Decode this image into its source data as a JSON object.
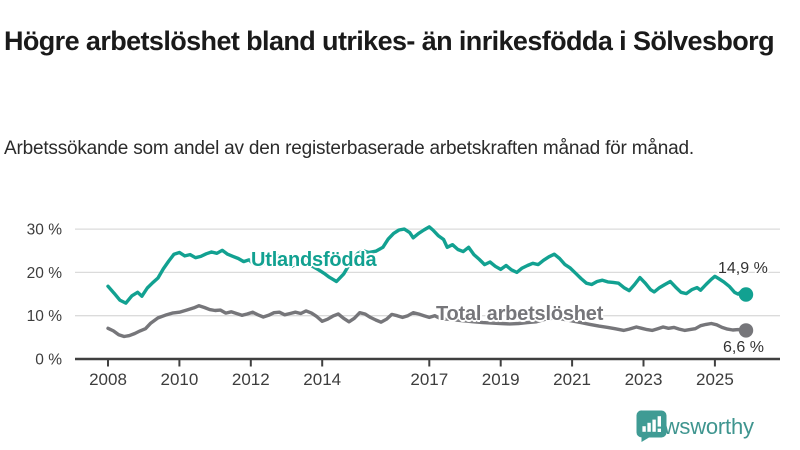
{
  "header": {
    "title": "Högre arbetslöshet bland utrikes- än inrikesfödda i Sölvesborg",
    "subtitle": "Arbetssökande som andel av den registerbaserade arbetskraften månad för månad."
  },
  "chart_data": {
    "type": "line",
    "title": "Högre arbetslöshet bland utrikes- än inrikesfödda i Sölvesborg",
    "subtitle": "Arbetssökande som andel av den registerbaserade arbetskraften månad för månad.",
    "unit": "%",
    "grid": true,
    "legend_position": "inline-labels",
    "x_axis": {
      "ticks": [
        2008,
        2010,
        2012,
        2014,
        2017,
        2019,
        2021,
        2023,
        2025
      ],
      "range": [
        2007.6,
        2026.4
      ]
    },
    "y_axis": {
      "range": [
        0,
        33
      ],
      "ticks": [
        {
          "value": 0,
          "label": "0 %"
        },
        {
          "value": 10,
          "label": "10 %"
        },
        {
          "value": 20,
          "label": "20 %"
        },
        {
          "value": 30,
          "label": "30 %"
        }
      ]
    },
    "series": [
      {
        "id": "utlandsfodda",
        "name": "Utlandsfödda",
        "color": "#12a191",
        "last_value": 14.9,
        "end_label": "14,9 %",
        "points": [
          [
            2008.0,
            16.8
          ],
          [
            2008.17,
            15.2
          ],
          [
            2008.33,
            13.6
          ],
          [
            2008.5,
            12.9
          ],
          [
            2008.67,
            14.6
          ],
          [
            2008.83,
            15.4
          ],
          [
            2008.95,
            14.5
          ],
          [
            2009.1,
            16.4
          ],
          [
            2009.25,
            17.6
          ],
          [
            2009.4,
            18.7
          ],
          [
            2009.55,
            20.8
          ],
          [
            2009.7,
            22.6
          ],
          [
            2009.85,
            24.2
          ],
          [
            2010.0,
            24.6
          ],
          [
            2010.15,
            23.8
          ],
          [
            2010.3,
            24.1
          ],
          [
            2010.45,
            23.4
          ],
          [
            2010.6,
            23.7
          ],
          [
            2010.75,
            24.3
          ],
          [
            2010.9,
            24.7
          ],
          [
            2011.05,
            24.4
          ],
          [
            2011.2,
            25.1
          ],
          [
            2011.35,
            24.2
          ],
          [
            2011.5,
            23.7
          ],
          [
            2011.65,
            23.2
          ],
          [
            2011.8,
            22.5
          ],
          [
            2011.95,
            22.9
          ],
          [
            2012.1,
            21.8
          ],
          [
            2012.25,
            21.4
          ],
          [
            2012.4,
            22.3
          ],
          [
            2012.55,
            23.5
          ],
          [
            2012.7,
            24.1
          ],
          [
            2012.85,
            23.2
          ],
          [
            2013.0,
            21.8
          ],
          [
            2013.15,
            21.4
          ],
          [
            2013.3,
            22.3
          ],
          [
            2013.45,
            22.8
          ],
          [
            2013.6,
            22.0
          ],
          [
            2013.75,
            21.3
          ],
          [
            2013.9,
            20.6
          ],
          [
            2014.05,
            19.8
          ],
          [
            2014.2,
            18.9
          ],
          [
            2014.4,
            17.9
          ],
          [
            2014.6,
            19.6
          ],
          [
            2014.8,
            22.4
          ],
          [
            2015.0,
            24.4
          ],
          [
            2015.15,
            25.0
          ],
          [
            2015.3,
            24.6
          ],
          [
            2015.5,
            24.9
          ],
          [
            2015.7,
            25.8
          ],
          [
            2015.85,
            27.7
          ],
          [
            2016.0,
            29.0
          ],
          [
            2016.15,
            29.8
          ],
          [
            2016.3,
            30.0
          ],
          [
            2016.45,
            29.2
          ],
          [
            2016.55,
            28.0
          ],
          [
            2016.7,
            29.0
          ],
          [
            2016.85,
            29.8
          ],
          [
            2017.0,
            30.5
          ],
          [
            2017.1,
            29.8
          ],
          [
            2017.25,
            28.5
          ],
          [
            2017.4,
            27.6
          ],
          [
            2017.5,
            25.8
          ],
          [
            2017.65,
            26.4
          ],
          [
            2017.8,
            25.3
          ],
          [
            2017.95,
            24.8
          ],
          [
            2018.1,
            25.8
          ],
          [
            2018.25,
            24.1
          ],
          [
            2018.4,
            23.0
          ],
          [
            2018.55,
            21.8
          ],
          [
            2018.7,
            22.4
          ],
          [
            2018.85,
            21.4
          ],
          [
            2019.0,
            20.7
          ],
          [
            2019.15,
            21.6
          ],
          [
            2019.3,
            20.6
          ],
          [
            2019.45,
            20.0
          ],
          [
            2019.6,
            21.0
          ],
          [
            2019.75,
            21.6
          ],
          [
            2019.9,
            22.1
          ],
          [
            2020.05,
            21.8
          ],
          [
            2020.2,
            22.8
          ],
          [
            2020.35,
            23.6
          ],
          [
            2020.5,
            24.2
          ],
          [
            2020.65,
            23.2
          ],
          [
            2020.8,
            21.8
          ],
          [
            2020.95,
            21.0
          ],
          [
            2021.1,
            19.8
          ],
          [
            2021.25,
            18.6
          ],
          [
            2021.4,
            17.5
          ],
          [
            2021.55,
            17.2
          ],
          [
            2021.7,
            17.9
          ],
          [
            2021.85,
            18.2
          ],
          [
            2022.0,
            17.8
          ],
          [
            2022.15,
            17.7
          ],
          [
            2022.3,
            17.5
          ],
          [
            2022.45,
            16.5
          ],
          [
            2022.6,
            15.8
          ],
          [
            2022.75,
            17.2
          ],
          [
            2022.9,
            18.8
          ],
          [
            2023.05,
            17.5
          ],
          [
            2023.2,
            16.0
          ],
          [
            2023.3,
            15.5
          ],
          [
            2023.45,
            16.5
          ],
          [
            2023.6,
            17.2
          ],
          [
            2023.75,
            17.9
          ],
          [
            2023.9,
            16.6
          ],
          [
            2024.05,
            15.4
          ],
          [
            2024.2,
            15.1
          ],
          [
            2024.35,
            16.0
          ],
          [
            2024.5,
            16.5
          ],
          [
            2024.6,
            15.9
          ],
          [
            2024.75,
            17.2
          ],
          [
            2024.9,
            18.4
          ],
          [
            2025.0,
            19.1
          ],
          [
            2025.1,
            18.6
          ],
          [
            2025.25,
            17.8
          ],
          [
            2025.4,
            16.8
          ],
          [
            2025.55,
            15.4
          ],
          [
            2025.65,
            15.0
          ],
          [
            2025.75,
            15.6
          ],
          [
            2025.87,
            14.9
          ]
        ]
      },
      {
        "id": "total",
        "name": "Total arbetslöshet",
        "color": "#76767a",
        "last_value": 6.6,
        "end_label": "6,6 %",
        "points": [
          [
            2008.0,
            7.1
          ],
          [
            2008.15,
            6.5
          ],
          [
            2008.3,
            5.6
          ],
          [
            2008.45,
            5.2
          ],
          [
            2008.6,
            5.4
          ],
          [
            2008.75,
            5.9
          ],
          [
            2008.9,
            6.5
          ],
          [
            2009.05,
            7.0
          ],
          [
            2009.2,
            8.3
          ],
          [
            2009.4,
            9.5
          ],
          [
            2009.6,
            10.1
          ],
          [
            2009.8,
            10.6
          ],
          [
            2010.0,
            10.8
          ],
          [
            2010.2,
            11.3
          ],
          [
            2010.4,
            11.8
          ],
          [
            2010.55,
            12.3
          ],
          [
            2010.7,
            11.9
          ],
          [
            2010.85,
            11.4
          ],
          [
            2011.0,
            11.2
          ],
          [
            2011.15,
            11.3
          ],
          [
            2011.3,
            10.6
          ],
          [
            2011.45,
            10.9
          ],
          [
            2011.6,
            10.5
          ],
          [
            2011.75,
            10.1
          ],
          [
            2011.9,
            10.4
          ],
          [
            2012.05,
            10.8
          ],
          [
            2012.2,
            10.2
          ],
          [
            2012.35,
            9.7
          ],
          [
            2012.5,
            10.1
          ],
          [
            2012.65,
            10.7
          ],
          [
            2012.8,
            10.8
          ],
          [
            2012.95,
            10.2
          ],
          [
            2013.1,
            10.5
          ],
          [
            2013.25,
            10.8
          ],
          [
            2013.4,
            10.5
          ],
          [
            2013.55,
            11.1
          ],
          [
            2013.7,
            10.6
          ],
          [
            2013.85,
            9.8
          ],
          [
            2014.0,
            8.7
          ],
          [
            2014.15,
            9.2
          ],
          [
            2014.3,
            9.9
          ],
          [
            2014.45,
            10.4
          ],
          [
            2014.6,
            9.4
          ],
          [
            2014.75,
            8.6
          ],
          [
            2014.9,
            9.4
          ],
          [
            2015.05,
            10.7
          ],
          [
            2015.2,
            10.4
          ],
          [
            2015.35,
            9.6
          ],
          [
            2015.5,
            9.0
          ],
          [
            2015.65,
            8.5
          ],
          [
            2015.8,
            9.2
          ],
          [
            2015.95,
            10.3
          ],
          [
            2016.1,
            10.0
          ],
          [
            2016.25,
            9.6
          ],
          [
            2016.4,
            10.0
          ],
          [
            2016.55,
            10.7
          ],
          [
            2016.7,
            10.4
          ],
          [
            2016.85,
            10.0
          ],
          [
            2017.0,
            9.6
          ],
          [
            2017.15,
            10.0
          ],
          [
            2017.3,
            9.4
          ],
          [
            2017.5,
            9.2
          ],
          [
            2017.75,
            9.0
          ],
          [
            2018.0,
            8.8
          ],
          [
            2018.25,
            8.6
          ],
          [
            2018.5,
            8.4
          ],
          [
            2018.75,
            8.3
          ],
          [
            2019.0,
            8.2
          ],
          [
            2019.25,
            8.1
          ],
          [
            2019.5,
            8.2
          ],
          [
            2019.75,
            8.4
          ],
          [
            2020.0,
            8.6
          ],
          [
            2020.25,
            9.2
          ],
          [
            2020.5,
            9.5
          ],
          [
            2020.75,
            9.2
          ],
          [
            2021.0,
            8.8
          ],
          [
            2021.25,
            8.4
          ],
          [
            2021.5,
            8.0
          ],
          [
            2021.75,
            7.6
          ],
          [
            2022.0,
            7.3
          ],
          [
            2022.2,
            7.0
          ],
          [
            2022.45,
            6.6
          ],
          [
            2022.6,
            6.9
          ],
          [
            2022.8,
            7.4
          ],
          [
            2022.95,
            7.1
          ],
          [
            2023.1,
            6.8
          ],
          [
            2023.25,
            6.6
          ],
          [
            2023.4,
            7.0
          ],
          [
            2023.55,
            7.4
          ],
          [
            2023.7,
            7.1
          ],
          [
            2023.85,
            7.3
          ],
          [
            2024.0,
            6.9
          ],
          [
            2024.15,
            6.6
          ],
          [
            2024.3,
            6.8
          ],
          [
            2024.45,
            7.0
          ],
          [
            2024.6,
            7.7
          ],
          [
            2024.75,
            8.0
          ],
          [
            2024.9,
            8.2
          ],
          [
            2025.05,
            7.9
          ],
          [
            2025.2,
            7.3
          ],
          [
            2025.35,
            6.9
          ],
          [
            2025.5,
            6.7
          ],
          [
            2025.65,
            6.8
          ],
          [
            2025.75,
            6.7
          ],
          [
            2025.87,
            6.6
          ]
        ]
      }
    ],
    "colors": {
      "accent_teal": "#12a191",
      "neutral_gray": "#76767a",
      "axis": "#404040",
      "gridline": "#dbdbdb",
      "text": "#333333"
    }
  },
  "footer": {
    "brand": "Newsworthy",
    "brand_color": "#3f958f",
    "icon": "newsworthy-chart-bubble-icon"
  }
}
